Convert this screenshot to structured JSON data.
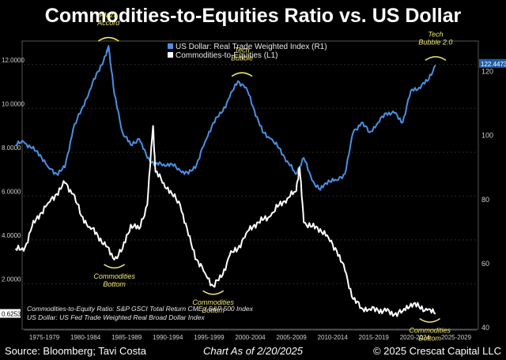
{
  "title": "Commodities-to-Equities Ratio vs. US Dollar",
  "footer": {
    "source": "Source: Bloomberg; Tavi Costa",
    "as_of": "Chart As of 2/20/2025",
    "copyright": "© 2025 Crescat Capital LLC"
  },
  "colors": {
    "background": "#000000",
    "usd": "#4a90e2",
    "ratio": "#ffffff",
    "annotation": "#f2e86d",
    "panel_border": "#555555",
    "grid": "#2a2a2a",
    "usd_badge": "#1f5fa8"
  },
  "chart_data": {
    "type": "line",
    "legend": {
      "placement": "top-center",
      "entries": [
        {
          "label": "US Dollar: Real Trade Weighted Index (R1)",
          "color": "#4a90e2"
        },
        {
          "label": "Commodities-to-Equities (L1)",
          "color": "#ffffff"
        }
      ]
    },
    "x_ticks": [
      "1975-1979",
      "1980-1984",
      "1985-1989",
      "1990-1994",
      "1995-1999",
      "2000-2004",
      "2005-2009",
      "2010-2014",
      "2015-2019",
      "2020-2024",
      "2025-2029"
    ],
    "x_range": [
      1975,
      2030
    ],
    "y_left": {
      "range": [
        0,
        13
      ],
      "ticks": [
        "2.0000",
        "4.0000",
        "6.0000",
        "8.0000",
        "10.0000",
        "12.0000"
      ],
      "tick_values": [
        2,
        4,
        6,
        8,
        10,
        12
      ]
    },
    "y_right": {
      "range": [
        40,
        129
      ],
      "ticks": [
        "40",
        "60",
        "80",
        "100",
        "120"
      ],
      "tick_values": [
        40,
        60,
        80,
        100,
        120
      ]
    },
    "last_values": {
      "left": "0.6253",
      "right": "122.4473"
    },
    "series": [
      {
        "name": "US Dollar: Real Trade Weighted Index (R1)",
        "axis": "right",
        "x": [
          1974,
          1975,
          1976,
          1977,
          1978,
          1979,
          1980,
          1981,
          1982,
          1983,
          1984,
          1985,
          1985.3,
          1986,
          1987,
          1988,
          1989,
          1990,
          1991,
          1992,
          1993,
          1994,
          1995,
          1996,
          1997,
          1998,
          1999,
          2000,
          2001,
          2002,
          2003,
          2004,
          2005,
          2006,
          2007,
          2008,
          2009,
          2010,
          2011,
          2012,
          2013,
          2014,
          2015,
          2016,
          2017,
          2018,
          2019,
          2020,
          2021,
          2022,
          2023,
          2024,
          2025
        ],
        "y": [
          97,
          98,
          96,
          94,
          90,
          88,
          90,
          102,
          108,
          114,
          120,
          125,
          128,
          113,
          101,
          97,
          99,
          93,
          91,
          91,
          91,
          89,
          88,
          91,
          98,
          104,
          107,
          112,
          117,
          115,
          108,
          101,
          99,
          96,
          92,
          88,
          93,
          86,
          83,
          86,
          86,
          88,
          101,
          104,
          101,
          104,
          107,
          107,
          104,
          114,
          115,
          117,
          122
        ]
      },
      {
        "name": "Commodities-to-Equities (L1)",
        "axis": "left",
        "x": [
          1974,
          1975,
          1976,
          1977,
          1978,
          1979,
          1980,
          1981,
          1982,
          1983,
          1984,
          1985,
          1986,
          1987,
          1988,
          1989,
          1990,
          1990.7,
          1991,
          1992,
          1993,
          1994,
          1995,
          1996,
          1997,
          1998,
          1999,
          2000,
          2001,
          2002,
          2003,
          2004,
          2005,
          2006,
          2007,
          2008,
          2008.5,
          2009,
          2010,
          2011,
          2012,
          2013,
          2014,
          2015,
          2016,
          2017,
          2018,
          2019,
          2020,
          2021,
          2022,
          2023,
          2024,
          2025
        ],
        "y": [
          3.6,
          3.5,
          4.6,
          5.2,
          5.7,
          6.1,
          6.6,
          6.1,
          5.1,
          4.6,
          4.2,
          3.7,
          3.1,
          3.6,
          4.7,
          4.5,
          5.6,
          9.2,
          7.1,
          6.6,
          6.1,
          5.6,
          4.2,
          3.1,
          2.5,
          1.9,
          2.3,
          3.3,
          3.6,
          4.3,
          4.7,
          4.9,
          5.1,
          5.6,
          5.9,
          6.2,
          7.3,
          4.8,
          4.6,
          4.5,
          4.1,
          3.5,
          2.6,
          1.3,
          0.9,
          0.85,
          0.8,
          0.75,
          0.6,
          0.75,
          1.1,
          0.95,
          0.8,
          0.63
        ]
      }
    ],
    "annotations": [
      {
        "text": "Plaza\nAccord",
        "x": 1985.3,
        "axis": "right",
        "y": 128
      },
      {
        "text": "Tech\nBubble",
        "x": 2001.5,
        "axis": "right",
        "y": 117
      },
      {
        "text": "Tech\nBubble 2.0",
        "x": 2025,
        "axis": "right",
        "y": 122
      },
      {
        "text": "Commodities\nBottom",
        "x": 1986,
        "axis": "left",
        "y": 3.1
      },
      {
        "text": "Commodities\nBottom",
        "x": 1998,
        "axis": "left",
        "y": 1.9
      },
      {
        "text": "Commodities\nBottom",
        "x": 2024.3,
        "axis": "left",
        "y": 0.63
      }
    ],
    "notes": [
      "Commodities-to-Equity Ratio: S&P GSCI Total Return CME / S&P 500 Index",
      "US Dollar: US Fed Trade Weighted Real Broad Dollar Index"
    ],
    "grid": true
  }
}
